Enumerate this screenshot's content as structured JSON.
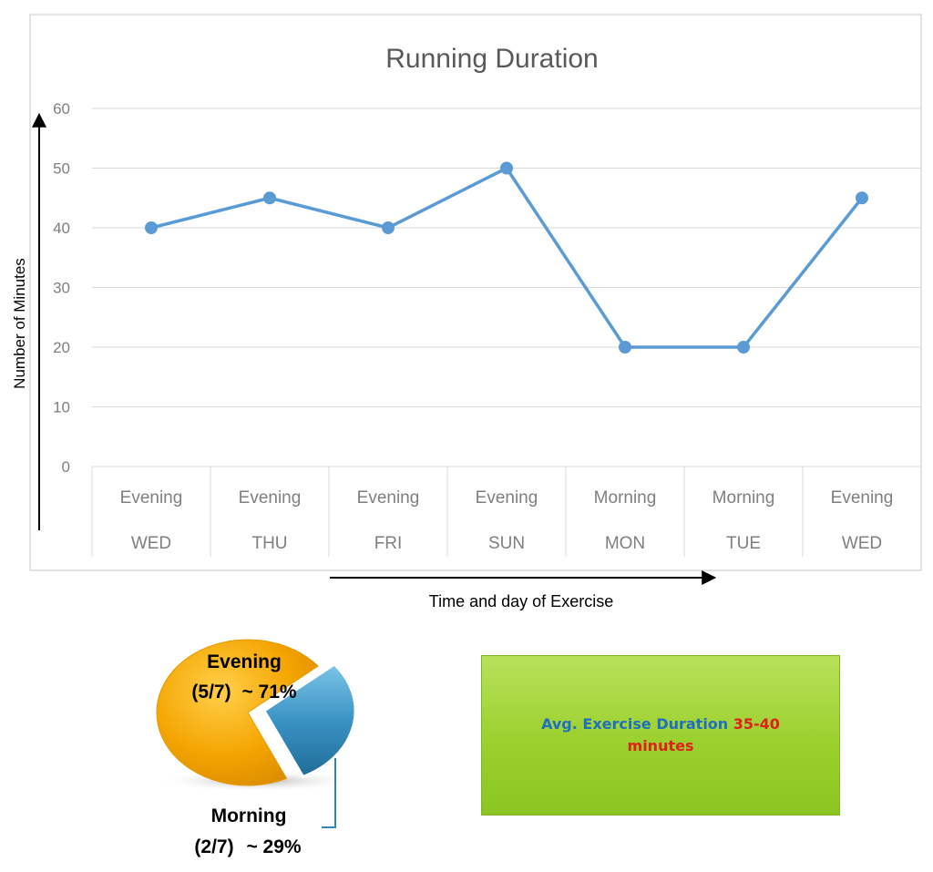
{
  "chart_data": [
    {
      "type": "line",
      "title": "Running Duration",
      "xlabel": "Time and day of Exercise",
      "ylabel": "Number of Minutes",
      "categories": [
        {
          "time": "Evening",
          "day": "WED"
        },
        {
          "time": "Evening",
          "day": "THU"
        },
        {
          "time": "Evening",
          "day": "FRI"
        },
        {
          "time": "Evening",
          "day": "SUN"
        },
        {
          "time": "Morning",
          "day": "MON"
        },
        {
          "time": "Morning",
          "day": "TUE"
        },
        {
          "time": "Evening",
          "day": "WED"
        }
      ],
      "values": [
        40,
        45,
        40,
        50,
        20,
        20,
        45
      ],
      "ylim": [
        0,
        60
      ],
      "yticks": [
        0,
        10,
        20,
        30,
        40,
        50,
        60
      ],
      "grid": true,
      "colors": {
        "line": "#5b9bd5",
        "grid": "#d9d9d9",
        "tick_text": "#7f7f7f",
        "title": "#595959"
      }
    },
    {
      "type": "pie",
      "slices": [
        {
          "label": "Evening",
          "fraction_text": "(5/7)",
          "percent_text": "~ 71%",
          "value": 71,
          "color": "#f0a500"
        },
        {
          "label": "Morning",
          "fraction_text": "(2/7)",
          "percent_text": "~ 29%",
          "value": 29,
          "color": "#2f86b4"
        }
      ]
    }
  ],
  "summary_box": {
    "label": "Avg. Exercise Duration",
    "value": "35-40",
    "unit": "minutes",
    "colors": {
      "label": "#1f6fc0",
      "value": "#e0201b",
      "background": "#9bd02e"
    }
  }
}
